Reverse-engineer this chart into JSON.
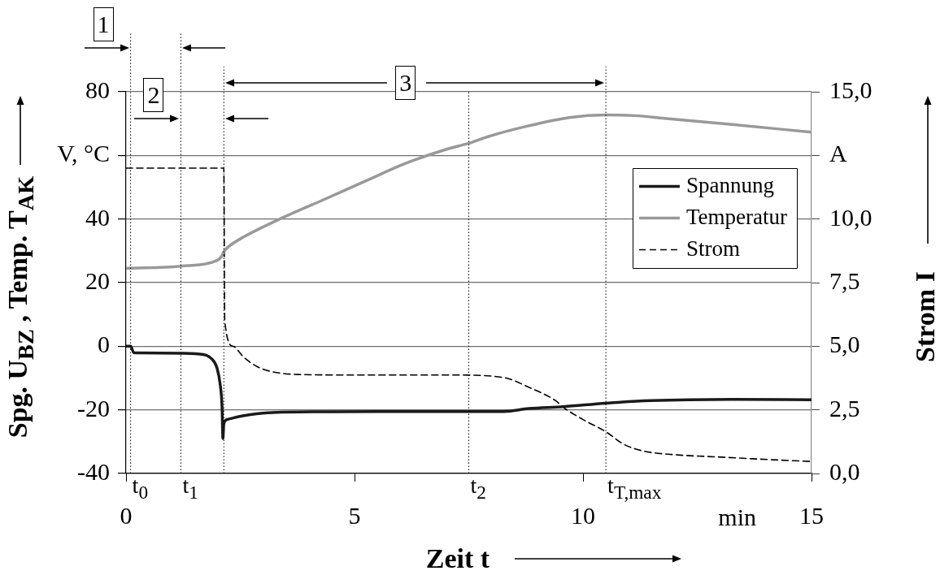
{
  "chart_data": {
    "type": "line",
    "xlabel": "Zeit t",
    "ylabel": "Spg. U$_{BZ}$ , Temp. T$_{AK}$",
    "y2label": "Strom I",
    "annotations": [
      "1",
      "2",
      "3",
      "min"
    ],
    "series": [
      {
        "name": "Spannung",
        "color": "#1a1a1a",
        "x": [
          0,
          0.1,
          0.17,
          0.3,
          1.2,
          1.69,
          1.87,
          1.99,
          2.06,
          2.1,
          2.12,
          2.14,
          2.22,
          2.58,
          3.11,
          4.36,
          5.5,
          7.2,
          8.27,
          8.81,
          9.57,
          10.5,
          11.48,
          13.26,
          15
        ],
        "values": [
          0,
          0,
          -2.0,
          -2.1,
          -2.2,
          -2.6,
          -3.9,
          -6.8,
          -12,
          -18.8,
          -29,
          -24.3,
          -23,
          -21.8,
          -20.9,
          -20.6,
          -20.5,
          -20.5,
          -20.5,
          -19.6,
          -19.0,
          -17.9,
          -17.1,
          -16.7,
          -16.8
        ]
      },
      {
        "name": "Temperatur",
        "color": "#999999",
        "x": [
          0,
          1.2,
          1.96,
          2.08,
          2.14,
          2.22,
          2.58,
          3.47,
          4.36,
          5.25,
          6.14,
          7.03,
          7.5,
          7.92,
          8.81,
          9.7,
          10.5,
          11.12,
          11.83,
          13.26,
          15
        ],
        "values": [
          24.5,
          25.2,
          26.8,
          28,
          29.7,
          31,
          34.4,
          40.7,
          46.3,
          52,
          57.6,
          62,
          63.8,
          65.9,
          69.3,
          71.9,
          72.7,
          72.5,
          71.6,
          69.7,
          67.3
        ]
      },
      {
        "name": "Strom",
        "color": "#000000",
        "axis": "y2",
        "line_style": "dashed",
        "x": [
          0,
          2.14,
          2.16,
          2.34,
          2.58,
          2.88,
          3.17,
          3.77,
          4.95,
          7.15,
          8.27,
          8.81,
          9.4,
          9.57,
          10.0,
          10.5,
          10.88,
          11.3,
          12.07,
          12.95,
          14.15,
          15
        ],
        "values": [
          12.0,
          12.0,
          6.0,
          5.0,
          4.56,
          4.19,
          4.01,
          3.89,
          3.87,
          3.87,
          3.77,
          3.39,
          2.86,
          2.6,
          2.12,
          1.64,
          1.16,
          0.89,
          0.73,
          0.65,
          0.54,
          0.47
        ]
      }
    ],
    "xlim": [
      0,
      15
    ],
    "xticks": [
      0,
      5,
      10,
      15
    ],
    "ylim": [
      -40,
      80
    ],
    "yticks": [
      -40,
      -20,
      0,
      20,
      40,
      {
        "value": 60,
        "label": "V, °C"
      },
      80
    ],
    "y2lim": [
      0,
      15
    ],
    "y2ticks": [
      {
        "value": 0,
        "label": "0,0"
      },
      {
        "value": 2.5,
        "label": "2,5"
      },
      {
        "value": 5,
        "label": "5,0"
      },
      {
        "value": 7.5,
        "label": "7,5"
      },
      {
        "value": 10,
        "label": "10,0"
      },
      {
        "value": 12.5,
        "label": "A"
      },
      {
        "value": 15,
        "label": "15,0"
      }
    ],
    "ref_lines": [
      {
        "axis": "x",
        "value": 0.1,
        "label": "t$_{0}$",
        "line_style": "dotted",
        "color": "#000000"
      },
      {
        "axis": "x",
        "value": 1.2,
        "label": "t$_{1}$",
        "line_style": "dotted",
        "color": "#000000"
      },
      {
        "axis": "x",
        "value": 2.14,
        "label": null,
        "line_style": "dotted",
        "color": "#000000"
      },
      {
        "axis": "x",
        "value": 7.5,
        "label": "t$_{2}$",
        "line_style": "dotted",
        "color": "#000000"
      },
      {
        "axis": "x",
        "value": 10.5,
        "label": "t$_{T,max}$",
        "line_style": "dotted",
        "color": "#000000"
      }
    ],
    "grid": "y",
    "legend": "right",
    "marker": "none",
    "line_style": "solid"
  }
}
